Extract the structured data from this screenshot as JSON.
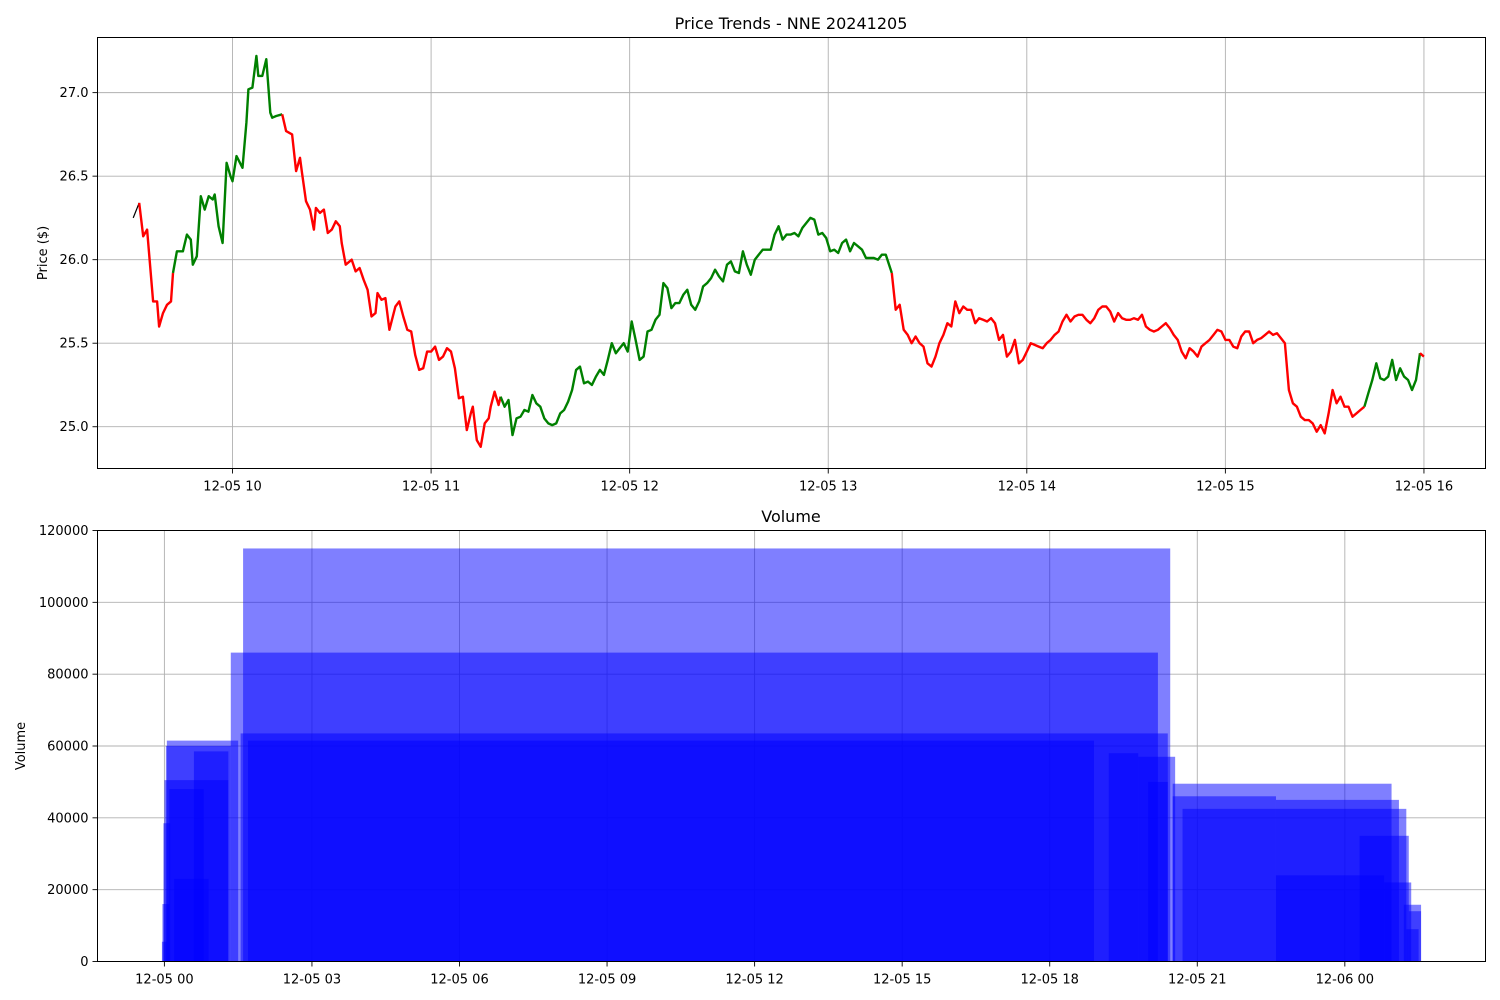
{
  "chart_data": [
    {
      "type": "line",
      "title": "Price Trends - NNE 20241205",
      "xlabel": "",
      "ylabel": "Price ($)",
      "x_unit": "hours (time of day, 2024-12-05)",
      "xlim": [
        9.32,
        16.31
      ],
      "ylim": [
        24.75,
        27.33
      ],
      "x_ticks": [
        10,
        11,
        12,
        13,
        14,
        15,
        16
      ],
      "x_tick_labels": [
        "12-05 10",
        "12-05 11",
        "12-05 12",
        "12-05 13",
        "12-05 14",
        "12-05 15",
        "12-05 16"
      ],
      "y_ticks": [
        25.0,
        25.5,
        26.0,
        26.5,
        27.0
      ],
      "y_tick_labels": [
        "25.0",
        "25.5",
        "26.0",
        "26.5",
        "27.0"
      ],
      "grid": true,
      "colors": {
        "up": "#008000",
        "down": "#ff0000",
        "start": "#000000"
      },
      "segments": [
        {
          "trend": "start",
          "x": [
            9.5,
            9.53
          ],
          "y": [
            26.25,
            26.34
          ]
        },
        {
          "trend": "down",
          "x": [
            9.53,
            9.55,
            9.57,
            9.6,
            9.62,
            9.63,
            9.65,
            9.67,
            9.69,
            9.7
          ],
          "y": [
            26.34,
            26.14,
            26.18,
            25.75,
            25.75,
            25.6,
            25.68,
            25.73,
            25.75,
            25.92
          ]
        },
        {
          "trend": "up",
          "x": [
            9.7,
            9.72,
            9.75,
            9.77,
            9.79,
            9.8,
            9.82,
            9.84,
            9.86,
            9.88,
            9.9,
            9.91,
            9.93,
            9.95,
            9.97,
            9.99,
            10.0,
            10.02,
            10.05,
            10.07,
            10.08,
            10.1,
            10.12,
            10.13,
            10.15,
            10.17,
            10.19,
            10.2,
            10.22,
            10.25
          ],
          "y": [
            25.92,
            26.05,
            26.05,
            26.15,
            26.12,
            25.97,
            26.02,
            26.38,
            26.3,
            26.38,
            26.36,
            26.39,
            26.2,
            26.1,
            26.58,
            26.5,
            26.47,
            26.62,
            26.55,
            26.82,
            27.02,
            27.03,
            27.22,
            27.1,
            27.1,
            27.2,
            26.88,
            26.85,
            26.86,
            26.87
          ]
        },
        {
          "trend": "down",
          "x": [
            10.25,
            10.27,
            10.3,
            10.32,
            10.34,
            10.35,
            10.37,
            10.39,
            10.41,
            10.42,
            10.44,
            10.46,
            10.48,
            10.5,
            10.52,
            10.54,
            10.55,
            10.57,
            10.6,
            10.62,
            10.64,
            10.66,
            10.68,
            10.7,
            10.72,
            10.73,
            10.75,
            10.77,
            10.79,
            10.82,
            10.84,
            10.86,
            10.88,
            10.9,
            10.92,
            10.94,
            10.96,
            10.98,
            11.0,
            11.02,
            11.04,
            11.06,
            11.08,
            11.1,
            11.12,
            11.14,
            11.16,
            11.18,
            11.2,
            11.21,
            11.23,
            11.25,
            11.27,
            11.29,
            11.3,
            11.32,
            11.34,
            11.35
          ],
          "y": [
            26.87,
            26.77,
            26.75,
            26.53,
            26.61,
            26.52,
            26.35,
            26.3,
            26.18,
            26.31,
            26.28,
            26.3,
            26.16,
            26.18,
            26.23,
            26.2,
            26.1,
            25.97,
            26.0,
            25.93,
            25.95,
            25.88,
            25.82,
            25.66,
            25.68,
            25.8,
            25.76,
            25.77,
            25.58,
            25.72,
            25.75,
            25.66,
            25.58,
            25.57,
            25.43,
            25.34,
            25.35,
            25.45,
            25.45,
            25.48,
            25.4,
            25.42,
            25.47,
            25.45,
            25.35,
            25.17,
            25.18,
            24.98,
            25.08,
            25.12,
            24.92,
            24.88,
            25.02,
            25.05,
            25.12,
            25.21,
            25.13,
            25.18
          ]
        },
        {
          "trend": "up",
          "x": [
            11.35,
            11.37,
            11.39,
            11.41,
            11.43,
            11.45,
            11.47,
            11.49,
            11.51,
            11.53,
            11.55,
            11.57,
            11.59,
            11.61,
            11.63,
            11.65,
            11.67,
            11.69,
            11.71,
            11.73,
            11.75,
            11.77,
            11.79,
            11.81,
            11.83,
            11.85,
            11.87,
            11.89,
            11.91,
            11.93,
            11.95,
            11.97,
            11.99,
            12.01,
            12.03,
            12.05,
            12.07,
            12.09,
            12.11,
            12.13,
            12.15,
            12.17,
            12.19,
            12.21,
            12.23,
            12.25,
            12.27,
            12.29,
            12.31,
            12.33,
            12.35,
            12.37,
            12.39,
            12.41,
            12.43,
            12.45,
            12.47,
            12.49,
            12.51,
            12.53,
            12.55,
            12.57,
            12.59,
            12.61,
            12.63,
            12.65,
            12.67,
            12.69,
            12.71,
            12.73,
            12.75,
            12.77,
            12.79,
            12.81,
            12.83,
            12.85,
            12.87,
            12.89,
            12.91,
            12.93,
            12.95,
            12.97,
            12.99,
            13.01,
            13.03,
            13.05,
            13.07,
            13.09,
            13.11,
            13.13,
            13.15,
            13.17,
            13.19,
            13.21,
            13.23,
            13.25,
            13.27,
            13.29,
            13.32
          ],
          "y": [
            25.18,
            25.12,
            25.16,
            24.95,
            25.05,
            25.06,
            25.1,
            25.09,
            25.19,
            25.14,
            25.12,
            25.05,
            25.02,
            25.01,
            25.02,
            25.08,
            25.1,
            25.15,
            25.22,
            25.34,
            25.36,
            25.26,
            25.27,
            25.25,
            25.3,
            25.34,
            25.31,
            25.4,
            25.5,
            25.44,
            25.47,
            25.5,
            25.45,
            25.63,
            25.52,
            25.4,
            25.42,
            25.57,
            25.58,
            25.64,
            25.67,
            25.86,
            25.83,
            25.71,
            25.74,
            25.74,
            25.79,
            25.82,
            25.73,
            25.7,
            25.75,
            25.84,
            25.86,
            25.89,
            25.94,
            25.9,
            25.87,
            25.97,
            25.99,
            25.93,
            25.92,
            26.05,
            25.97,
            25.91,
            26.0,
            26.03,
            26.06,
            26.06,
            26.06,
            26.15,
            26.2,
            26.12,
            26.15,
            26.15,
            26.16,
            26.14,
            26.19,
            26.22,
            26.25,
            26.24,
            26.15,
            26.16,
            26.13,
            26.05,
            26.06,
            26.04,
            26.1,
            26.12,
            26.05,
            26.1,
            26.08,
            26.06,
            26.01,
            26.01,
            26.01,
            26.0,
            26.03,
            26.03,
            25.92
          ]
        },
        {
          "trend": "down",
          "x": [
            13.32,
            13.34,
            13.36,
            13.38,
            13.4,
            13.42,
            13.44,
            13.46,
            13.48,
            13.5,
            13.52,
            13.54,
            13.56,
            13.58,
            13.6,
            13.62,
            13.64,
            13.66,
            13.68,
            13.7,
            13.72,
            13.74,
            13.76,
            13.78,
            13.8,
            13.82,
            13.84,
            13.86,
            13.88,
            13.9,
            13.92,
            13.94,
            13.96,
            13.98,
            14.0,
            14.02,
            14.04,
            14.06,
            14.08,
            14.1,
            14.12,
            14.14,
            14.16,
            14.18,
            14.2,
            14.22,
            14.24,
            14.26,
            14.28,
            14.3,
            14.32,
            14.34,
            14.36,
            14.38,
            14.4,
            14.42,
            14.44,
            14.46,
            14.48,
            14.5,
            14.52,
            14.54,
            14.56,
            14.58,
            14.6,
            14.62,
            14.64,
            14.66,
            14.68,
            14.7,
            14.72,
            14.74,
            14.76,
            14.78,
            14.8,
            14.82,
            14.84,
            14.86,
            14.88,
            14.9,
            14.92,
            14.94,
            14.96,
            14.98,
            15.0,
            15.02,
            15.04,
            15.06,
            15.08,
            15.1,
            15.12,
            15.14,
            15.16,
            15.18,
            15.2,
            15.22,
            15.24,
            15.26,
            15.28,
            15.3,
            15.32,
            15.34,
            15.36,
            15.38,
            15.4,
            15.42,
            15.44,
            15.46,
            15.48,
            15.5,
            15.52,
            15.54,
            15.56,
            15.58,
            15.6,
            15.62,
            15.64,
            15.66,
            15.68,
            15.7
          ],
          "y": [
            25.92,
            25.7,
            25.73,
            25.58,
            25.55,
            25.5,
            25.54,
            25.5,
            25.48,
            25.38,
            25.36,
            25.42,
            25.5,
            25.55,
            25.62,
            25.6,
            25.75,
            25.68,
            25.72,
            25.7,
            25.7,
            25.62,
            25.65,
            25.64,
            25.63,
            25.65,
            25.62,
            25.52,
            25.55,
            25.42,
            25.45,
            25.52,
            25.38,
            25.4,
            25.45,
            25.5,
            25.49,
            25.48,
            25.47,
            25.5,
            25.52,
            25.55,
            25.57,
            25.63,
            25.67,
            25.63,
            25.66,
            25.67,
            25.67,
            25.64,
            25.62,
            25.65,
            25.7,
            25.72,
            25.72,
            25.69,
            25.63,
            25.68,
            25.65,
            25.64,
            25.64,
            25.65,
            25.64,
            25.67,
            25.6,
            25.58,
            25.57,
            25.58,
            25.6,
            25.62,
            25.59,
            25.55,
            25.52,
            25.45,
            25.41,
            25.47,
            25.45,
            25.42,
            25.48,
            25.5,
            25.52,
            25.55,
            25.58,
            25.57,
            25.52,
            25.52,
            25.48,
            25.47,
            25.54,
            25.57,
            25.57,
            25.5,
            25.52,
            25.53,
            25.55,
            25.57,
            25.55,
            25.56,
            25.53,
            25.5,
            25.22,
            25.14,
            25.12,
            25.06,
            25.04,
            25.04,
            25.02,
            24.97,
            25.01,
            24.96,
            25.08,
            25.22,
            25.14,
            25.18,
            25.12,
            25.12,
            25.06,
            25.08,
            25.1,
            25.12
          ]
        },
        {
          "trend": "up",
          "x": [
            15.7,
            15.72,
            15.74,
            15.76,
            15.78,
            15.8,
            15.82,
            15.84,
            15.86,
            15.88,
            15.9,
            15.92,
            15.94,
            15.96,
            15.98
          ],
          "y": [
            25.12,
            25.2,
            25.28,
            25.38,
            25.29,
            25.28,
            25.3,
            25.4,
            25.28,
            25.35,
            25.3,
            25.28,
            25.22,
            25.28,
            25.44
          ]
        },
        {
          "trend": "down",
          "x": [
            15.98,
            16.0
          ],
          "y": [
            25.44,
            25.42
          ]
        }
      ]
    },
    {
      "type": "bar",
      "title": "Volume",
      "xlabel": "",
      "ylabel": "Volume",
      "x_unit": "hours since 2024-12-05 00:00",
      "xlim": [
        -1.36,
        26.86
      ],
      "ylim": [
        0,
        120000
      ],
      "x_ticks": [
        0,
        3,
        6,
        9,
        12,
        15,
        18,
        21,
        24
      ],
      "x_tick_labels": [
        "12-05 00",
        "12-05 03",
        "12-05 06",
        "12-05 09",
        "12-05 12",
        "12-05 15",
        "12-05 18",
        "12-05 21",
        "12-06 00"
      ],
      "y_ticks": [
        0,
        20000,
        40000,
        60000,
        80000,
        100000,
        120000
      ],
      "y_tick_labels": [
        "0",
        "20000",
        "40000",
        "60000",
        "80000",
        "100000",
        "120000"
      ],
      "grid": true,
      "bar_color": "#0000ff",
      "bar_alpha": 0.5,
      "bars": [
        {
          "start": -0.05,
          "end": 0.05,
          "value": 5500
        },
        {
          "start": -0.04,
          "end": 0.1,
          "value": 16000
        },
        {
          "start": -0.02,
          "end": 0.12,
          "value": 38500
        },
        {
          "start": 0.0,
          "end": 1.3,
          "value": 50500
        },
        {
          "start": 0.03,
          "end": 1.35,
          "value": 60000
        },
        {
          "start": 0.05,
          "end": 1.5,
          "value": 61500
        },
        {
          "start": 0.1,
          "end": 0.8,
          "value": 48000
        },
        {
          "start": 0.6,
          "end": 1.3,
          "value": 58500
        },
        {
          "start": 0.2,
          "end": 0.9,
          "value": 23000
        },
        {
          "start": 1.35,
          "end": 20.2,
          "value": 86000
        },
        {
          "start": 1.6,
          "end": 20.45,
          "value": 115000
        },
        {
          "start": 1.55,
          "end": 20.4,
          "value": 63500
        },
        {
          "start": 1.7,
          "end": 18.9,
          "value": 61500
        },
        {
          "start": 19.2,
          "end": 19.8,
          "value": 58000
        },
        {
          "start": 19.8,
          "end": 20.55,
          "value": 57000
        },
        {
          "start": 20.0,
          "end": 20.4,
          "value": 50000
        },
        {
          "start": 20.5,
          "end": 24.95,
          "value": 49500
        },
        {
          "start": 20.5,
          "end": 22.6,
          "value": 46000
        },
        {
          "start": 22.6,
          "end": 25.1,
          "value": 45000
        },
        {
          "start": 20.7,
          "end": 25.25,
          "value": 42500
        },
        {
          "start": 24.3,
          "end": 25.3,
          "value": 35000
        },
        {
          "start": 24.8,
          "end": 25.35,
          "value": 22000
        },
        {
          "start": 25.2,
          "end": 25.55,
          "value": 15800
        },
        {
          "start": 25.3,
          "end": 25.55,
          "value": 14000
        },
        {
          "start": 25.25,
          "end": 25.5,
          "value": 9000
        },
        {
          "start": 22.6,
          "end": 24.8,
          "value": 24000
        }
      ]
    }
  ]
}
